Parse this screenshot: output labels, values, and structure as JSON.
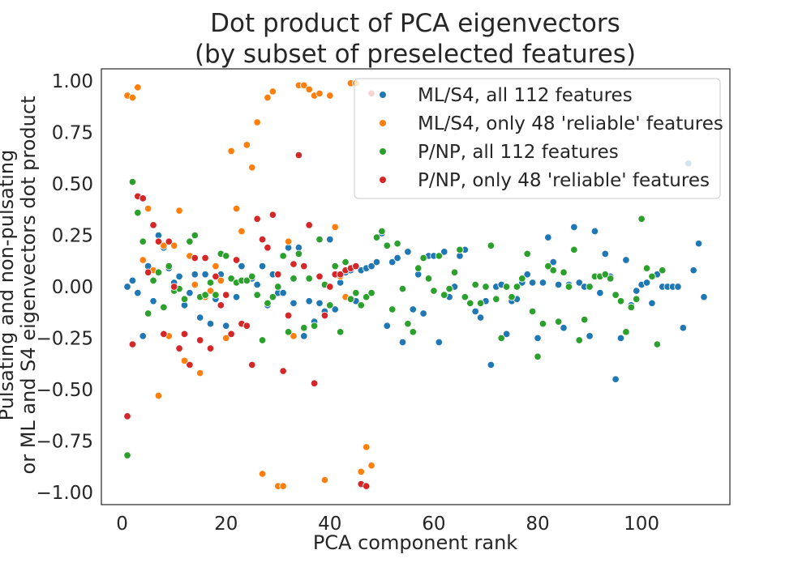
{
  "chart_data": {
    "type": "scatter",
    "title": [
      "Dot product of PCA eigenvectors",
      "(by subset of preselected features)"
    ],
    "xlabel": "PCA component rank",
    "ylabel": [
      "Pulsating and non-pulsating",
      "or ML and S4 eigenvectors dot product"
    ],
    "xlim": [
      -4,
      117
    ],
    "ylim": [
      -1.06,
      1.06
    ],
    "xticks": [
      0,
      20,
      40,
      60,
      80,
      100
    ],
    "xtick_labels": [
      "0",
      "20",
      "40",
      "60",
      "80",
      "100"
    ],
    "yticks": [
      1.0,
      0.75,
      0.5,
      0.25,
      0.0,
      -0.25,
      -0.5,
      -0.75,
      -1.0
    ],
    "ytick_labels": [
      "1.00",
      "0.75",
      "0.50",
      "0.25",
      "0.00",
      "−0.25",
      "−0.50",
      "−0.75",
      "−1.00"
    ],
    "grid": false,
    "legend_position": "top-right",
    "series": [
      {
        "name": "ML/S4, all 112 features",
        "color": "#1f77b4",
        "points": [
          [
            1,
            0.0
          ],
          [
            2,
            0.03
          ],
          [
            3,
            -0.03
          ],
          [
            4,
            -0.24
          ],
          [
            5,
            0.1
          ],
          [
            6,
            -0.07
          ],
          [
            7,
            0.25
          ],
          [
            8,
            0.19
          ],
          [
            9,
            0.09
          ],
          [
            10,
            0.02
          ],
          [
            11,
            0.05
          ],
          [
            12,
            -0.09
          ],
          [
            13,
            -0.03
          ],
          [
            14,
            0.06
          ],
          [
            15,
            -0.15
          ],
          [
            16,
            0.06
          ],
          [
            17,
            -0.18
          ],
          [
            18,
            -0.06
          ],
          [
            19,
            0.06
          ],
          [
            20,
            -0.19
          ],
          [
            21,
            -0.23
          ],
          [
            22,
            -0.05
          ],
          [
            23,
            0.1
          ],
          [
            24,
            -0.19
          ],
          [
            25,
            0.04
          ],
          [
            26,
            0.01
          ],
          [
            27,
            0.1
          ],
          [
            28,
            -0.09
          ],
          [
            29,
            0.06
          ],
          [
            30,
            -0.03
          ],
          [
            31,
            -0.03
          ],
          [
            32,
            0.19
          ],
          [
            33,
            -0.08
          ],
          [
            34,
            0.19
          ],
          [
            35,
            -0.24
          ],
          [
            36,
            -0.07
          ],
          [
            37,
            -0.17
          ],
          [
            38,
            -0.08
          ],
          [
            39,
            -0.12
          ],
          [
            40,
            0.23
          ],
          [
            41,
            -0.11
          ],
          [
            42,
            0.02
          ],
          [
            43,
            0.07
          ],
          [
            44,
            0.08
          ],
          [
            45,
            -0.07
          ],
          [
            46,
            0.08
          ],
          [
            47,
            0.09
          ],
          [
            48,
            0.1
          ],
          [
            49,
            0.12
          ],
          [
            50,
            0.26
          ],
          [
            51,
            -0.19
          ],
          [
            52,
            0.12
          ],
          [
            53,
            0.14
          ],
          [
            54,
            -0.27
          ],
          [
            55,
            0.17
          ],
          [
            56,
            -0.11
          ],
          [
            57,
            0.06
          ],
          [
            58,
            -0.13
          ],
          [
            59,
            0.15
          ],
          [
            60,
            0.15
          ],
          [
            61,
            -0.27
          ],
          [
            62,
            0.17
          ],
          [
            63,
            -0.05
          ],
          [
            64,
            0.0
          ],
          [
            65,
            0.15
          ],
          [
            66,
            0.18
          ],
          [
            67,
            -0.08
          ],
          [
            68,
            -0.12
          ],
          [
            69,
            -0.15
          ],
          [
            70,
            -0.07
          ],
          [
            71,
            -0.38
          ],
          [
            72,
            0.0
          ],
          [
            73,
            0.01
          ],
          [
            74,
            -0.23
          ],
          [
            75,
            -0.07
          ],
          [
            76,
            -0.06
          ],
          [
            77,
            0.02
          ],
          [
            78,
            0.06
          ],
          [
            79,
            0.02
          ],
          [
            80,
            -0.25
          ],
          [
            81,
            0.02
          ],
          [
            82,
            0.24
          ],
          [
            83,
            0.12
          ],
          [
            84,
            0.01
          ],
          [
            85,
            -0.2
          ],
          [
            86,
            0.01
          ],
          [
            87,
            0.29
          ],
          [
            88,
            0.02
          ],
          [
            89,
            0.0
          ],
          [
            90,
            -0.24
          ],
          [
            91,
            0.27
          ],
          [
            92,
            -0.03
          ],
          [
            93,
            0.16
          ],
          [
            94,
            0.05
          ],
          [
            95,
            -0.45
          ],
          [
            96,
            -0.25
          ],
          [
            97,
            0.13
          ],
          [
            98,
            -0.09
          ],
          [
            99,
            -0.02
          ],
          [
            100,
            0.01
          ],
          [
            101,
            0.02
          ],
          [
            102,
            -0.08
          ],
          [
            103,
            0.06
          ],
          [
            104,
            0.0
          ],
          [
            105,
            0.0
          ],
          [
            106,
            0.0
          ],
          [
            107,
            0.0
          ],
          [
            108,
            -0.2
          ],
          [
            109,
            0.6
          ],
          [
            110,
            0.08
          ],
          [
            111,
            0.21
          ],
          [
            112,
            -0.05
          ]
        ]
      },
      {
        "name": "ML/S4, only 48 'reliable' features",
        "color": "#ff7f0e",
        "points": [
          [
            1,
            0.93
          ],
          [
            2,
            0.92
          ],
          [
            3,
            0.97
          ],
          [
            4,
            0.13
          ],
          [
            5,
            0.38
          ],
          [
            6,
            0.08
          ],
          [
            7,
            -0.53
          ],
          [
            8,
            0.2
          ],
          [
            9,
            -0.24
          ],
          [
            10,
            0.2
          ],
          [
            11,
            0.37
          ],
          [
            12,
            -0.36
          ],
          [
            13,
            0.15
          ],
          [
            14,
            0.01
          ],
          [
            15,
            -0.42
          ],
          [
            16,
            -0.05
          ],
          [
            17,
            -0.02
          ],
          [
            18,
            0.1
          ],
          [
            19,
            0.03
          ],
          [
            20,
            -0.25
          ],
          [
            21,
            0.66
          ],
          [
            22,
            0.38
          ],
          [
            23,
            0.27
          ],
          [
            24,
            0.69
          ],
          [
            25,
            0.58
          ],
          [
            26,
            0.8
          ],
          [
            27,
            -0.91
          ],
          [
            28,
            0.92
          ],
          [
            29,
            0.95
          ],
          [
            30,
            -0.97
          ],
          [
            31,
            -0.97
          ],
          [
            32,
            0.22
          ],
          [
            33,
            -0.24
          ],
          [
            34,
            0.98
          ],
          [
            35,
            0.98
          ],
          [
            36,
            0.96
          ],
          [
            37,
            0.93
          ],
          [
            38,
            0.94
          ],
          [
            39,
            -0.94
          ],
          [
            40,
            0.93
          ],
          [
            41,
            0.29
          ],
          [
            42,
            0.05
          ],
          [
            43,
            -0.05
          ],
          [
            44,
            0.99
          ],
          [
            45,
            0.99
          ],
          [
            46,
            -0.9
          ],
          [
            47,
            -0.78
          ],
          [
            48,
            -0.87
          ]
        ]
      },
      {
        "name": "P/NP, all 112 features",
        "color": "#2ca02c",
        "points": [
          [
            1,
            -0.82
          ],
          [
            2,
            0.51
          ],
          [
            3,
            0.36
          ],
          [
            4,
            0.22
          ],
          [
            5,
            -0.13
          ],
          [
            6,
            0.03
          ],
          [
            7,
            0.07
          ],
          [
            8,
            -0.1
          ],
          [
            9,
            0.1
          ],
          [
            10,
            -0.02
          ],
          [
            11,
            -0.01
          ],
          [
            12,
            -0.06
          ],
          [
            13,
            0.22
          ],
          [
            14,
            0.25
          ],
          [
            15,
            -0.05
          ],
          [
            16,
            -0.04
          ],
          [
            17,
            0.02
          ],
          [
            18,
            -0.04
          ],
          [
            19,
            0.16
          ],
          [
            20,
            0.15
          ],
          [
            21,
            0.04
          ],
          [
            22,
            0.02
          ],
          [
            23,
            0.03
          ],
          [
            24,
            0.03
          ],
          [
            25,
            0.05
          ],
          [
            26,
            -0.04
          ],
          [
            27,
            -0.26
          ],
          [
            28,
            -0.08
          ],
          [
            29,
            -0.05
          ],
          [
            30,
            0.0
          ],
          [
            31,
            0.15
          ],
          [
            32,
            -0.22
          ],
          [
            33,
            0.04
          ],
          [
            34,
            0.16
          ],
          [
            35,
            -0.2
          ],
          [
            36,
            0.04
          ],
          [
            37,
            -0.19
          ],
          [
            38,
            0.23
          ],
          [
            39,
            0.01
          ],
          [
            40,
            -0.09
          ],
          [
            41,
            0.1
          ],
          [
            42,
            -0.22
          ],
          [
            43,
            0.12
          ],
          [
            44,
            -0.06
          ],
          [
            45,
            -0.03
          ],
          [
            46,
            -0.09
          ],
          [
            47,
            -0.05
          ],
          [
            48,
            -0.03
          ],
          [
            49,
            0.24
          ],
          [
            50,
            0.27
          ],
          [
            51,
            0.2
          ],
          [
            52,
            -0.11
          ],
          [
            53,
            0.21
          ],
          [
            54,
            -0.01
          ],
          [
            55,
            -0.18
          ],
          [
            56,
            -0.22
          ],
          [
            57,
            0.09
          ],
          [
            58,
            0.14
          ],
          [
            59,
            0.04
          ],
          [
            60,
            -0.02
          ],
          [
            61,
            0.15
          ],
          [
            62,
            -0.04
          ],
          [
            63,
            -0.01
          ],
          [
            64,
            0.07
          ],
          [
            65,
            0.18
          ],
          [
            66,
            -0.05
          ],
          [
            67,
            -0.08
          ],
          [
            68,
            0.01
          ],
          [
            69,
            -0.08
          ],
          [
            70,
            0.0
          ],
          [
            71,
            0.2
          ],
          [
            72,
            -0.06
          ],
          [
            73,
            -0.25
          ],
          [
            74,
            0.0
          ],
          [
            75,
            -0.05
          ],
          [
            76,
            0.0
          ],
          [
            77,
            0.04
          ],
          [
            78,
            0.16
          ],
          [
            79,
            -0.12
          ],
          [
            80,
            -0.34
          ],
          [
            81,
            -0.18
          ],
          [
            82,
            0.1
          ],
          [
            83,
            0.08
          ],
          [
            84,
            -0.17
          ],
          [
            85,
            0.07
          ],
          [
            86,
            0.0
          ],
          [
            87,
            0.18
          ],
          [
            88,
            -0.26
          ],
          [
            89,
            -0.16
          ],
          [
            90,
            0.0
          ],
          [
            91,
            0.05
          ],
          [
            92,
            0.05
          ],
          [
            93,
            0.06
          ],
          [
            94,
            0.04
          ],
          [
            95,
            -0.04
          ],
          [
            96,
            -0.07
          ],
          [
            97,
            -0.22
          ],
          [
            98,
            -0.1
          ],
          [
            99,
            -0.06
          ],
          [
            100,
            0.33
          ],
          [
            101,
            0.09
          ],
          [
            102,
            0.05
          ],
          [
            103,
            -0.28
          ],
          [
            104,
            0.08
          ]
        ]
      },
      {
        "name": "P/NP, only 48 'reliable' features",
        "color": "#d62728",
        "points": [
          [
            1,
            -0.63
          ],
          [
            2,
            -0.28
          ],
          [
            3,
            0.44
          ],
          [
            4,
            0.43
          ],
          [
            5,
            0.07
          ],
          [
            6,
            0.3
          ],
          [
            7,
            0.22
          ],
          [
            8,
            -0.23
          ],
          [
            9,
            0.22
          ],
          [
            10,
            0.0
          ],
          [
            11,
            -0.3
          ],
          [
            12,
            -0.23
          ],
          [
            13,
            -0.38
          ],
          [
            14,
            0.14
          ],
          [
            15,
            -0.26
          ],
          [
            16,
            0.14
          ],
          [
            17,
            -0.3
          ],
          [
            18,
            0.05
          ],
          [
            19,
            -0.09
          ],
          [
            20,
            -0.04
          ],
          [
            21,
            -0.23
          ],
          [
            22,
            0.13
          ],
          [
            23,
            -0.18
          ],
          [
            24,
            -0.19
          ],
          [
            25,
            -0.38
          ],
          [
            26,
            0.33
          ],
          [
            27,
            0.23
          ],
          [
            28,
            0.19
          ],
          [
            29,
            0.35
          ],
          [
            30,
            0.06
          ],
          [
            31,
            -0.41
          ],
          [
            32,
            -0.14
          ],
          [
            33,
            0.11
          ],
          [
            34,
            0.64
          ],
          [
            35,
            0.1
          ],
          [
            36,
            0.3
          ],
          [
            37,
            -0.47
          ],
          [
            38,
            0.05
          ],
          [
            39,
            -0.14
          ],
          [
            40,
            0.0
          ],
          [
            41,
            0.06
          ],
          [
            42,
            0.06
          ],
          [
            43,
            0.08
          ],
          [
            44,
            0.09
          ],
          [
            45,
            0.1
          ],
          [
            46,
            -0.96
          ],
          [
            47,
            -0.97
          ],
          [
            48,
            0.94
          ]
        ]
      }
    ]
  }
}
